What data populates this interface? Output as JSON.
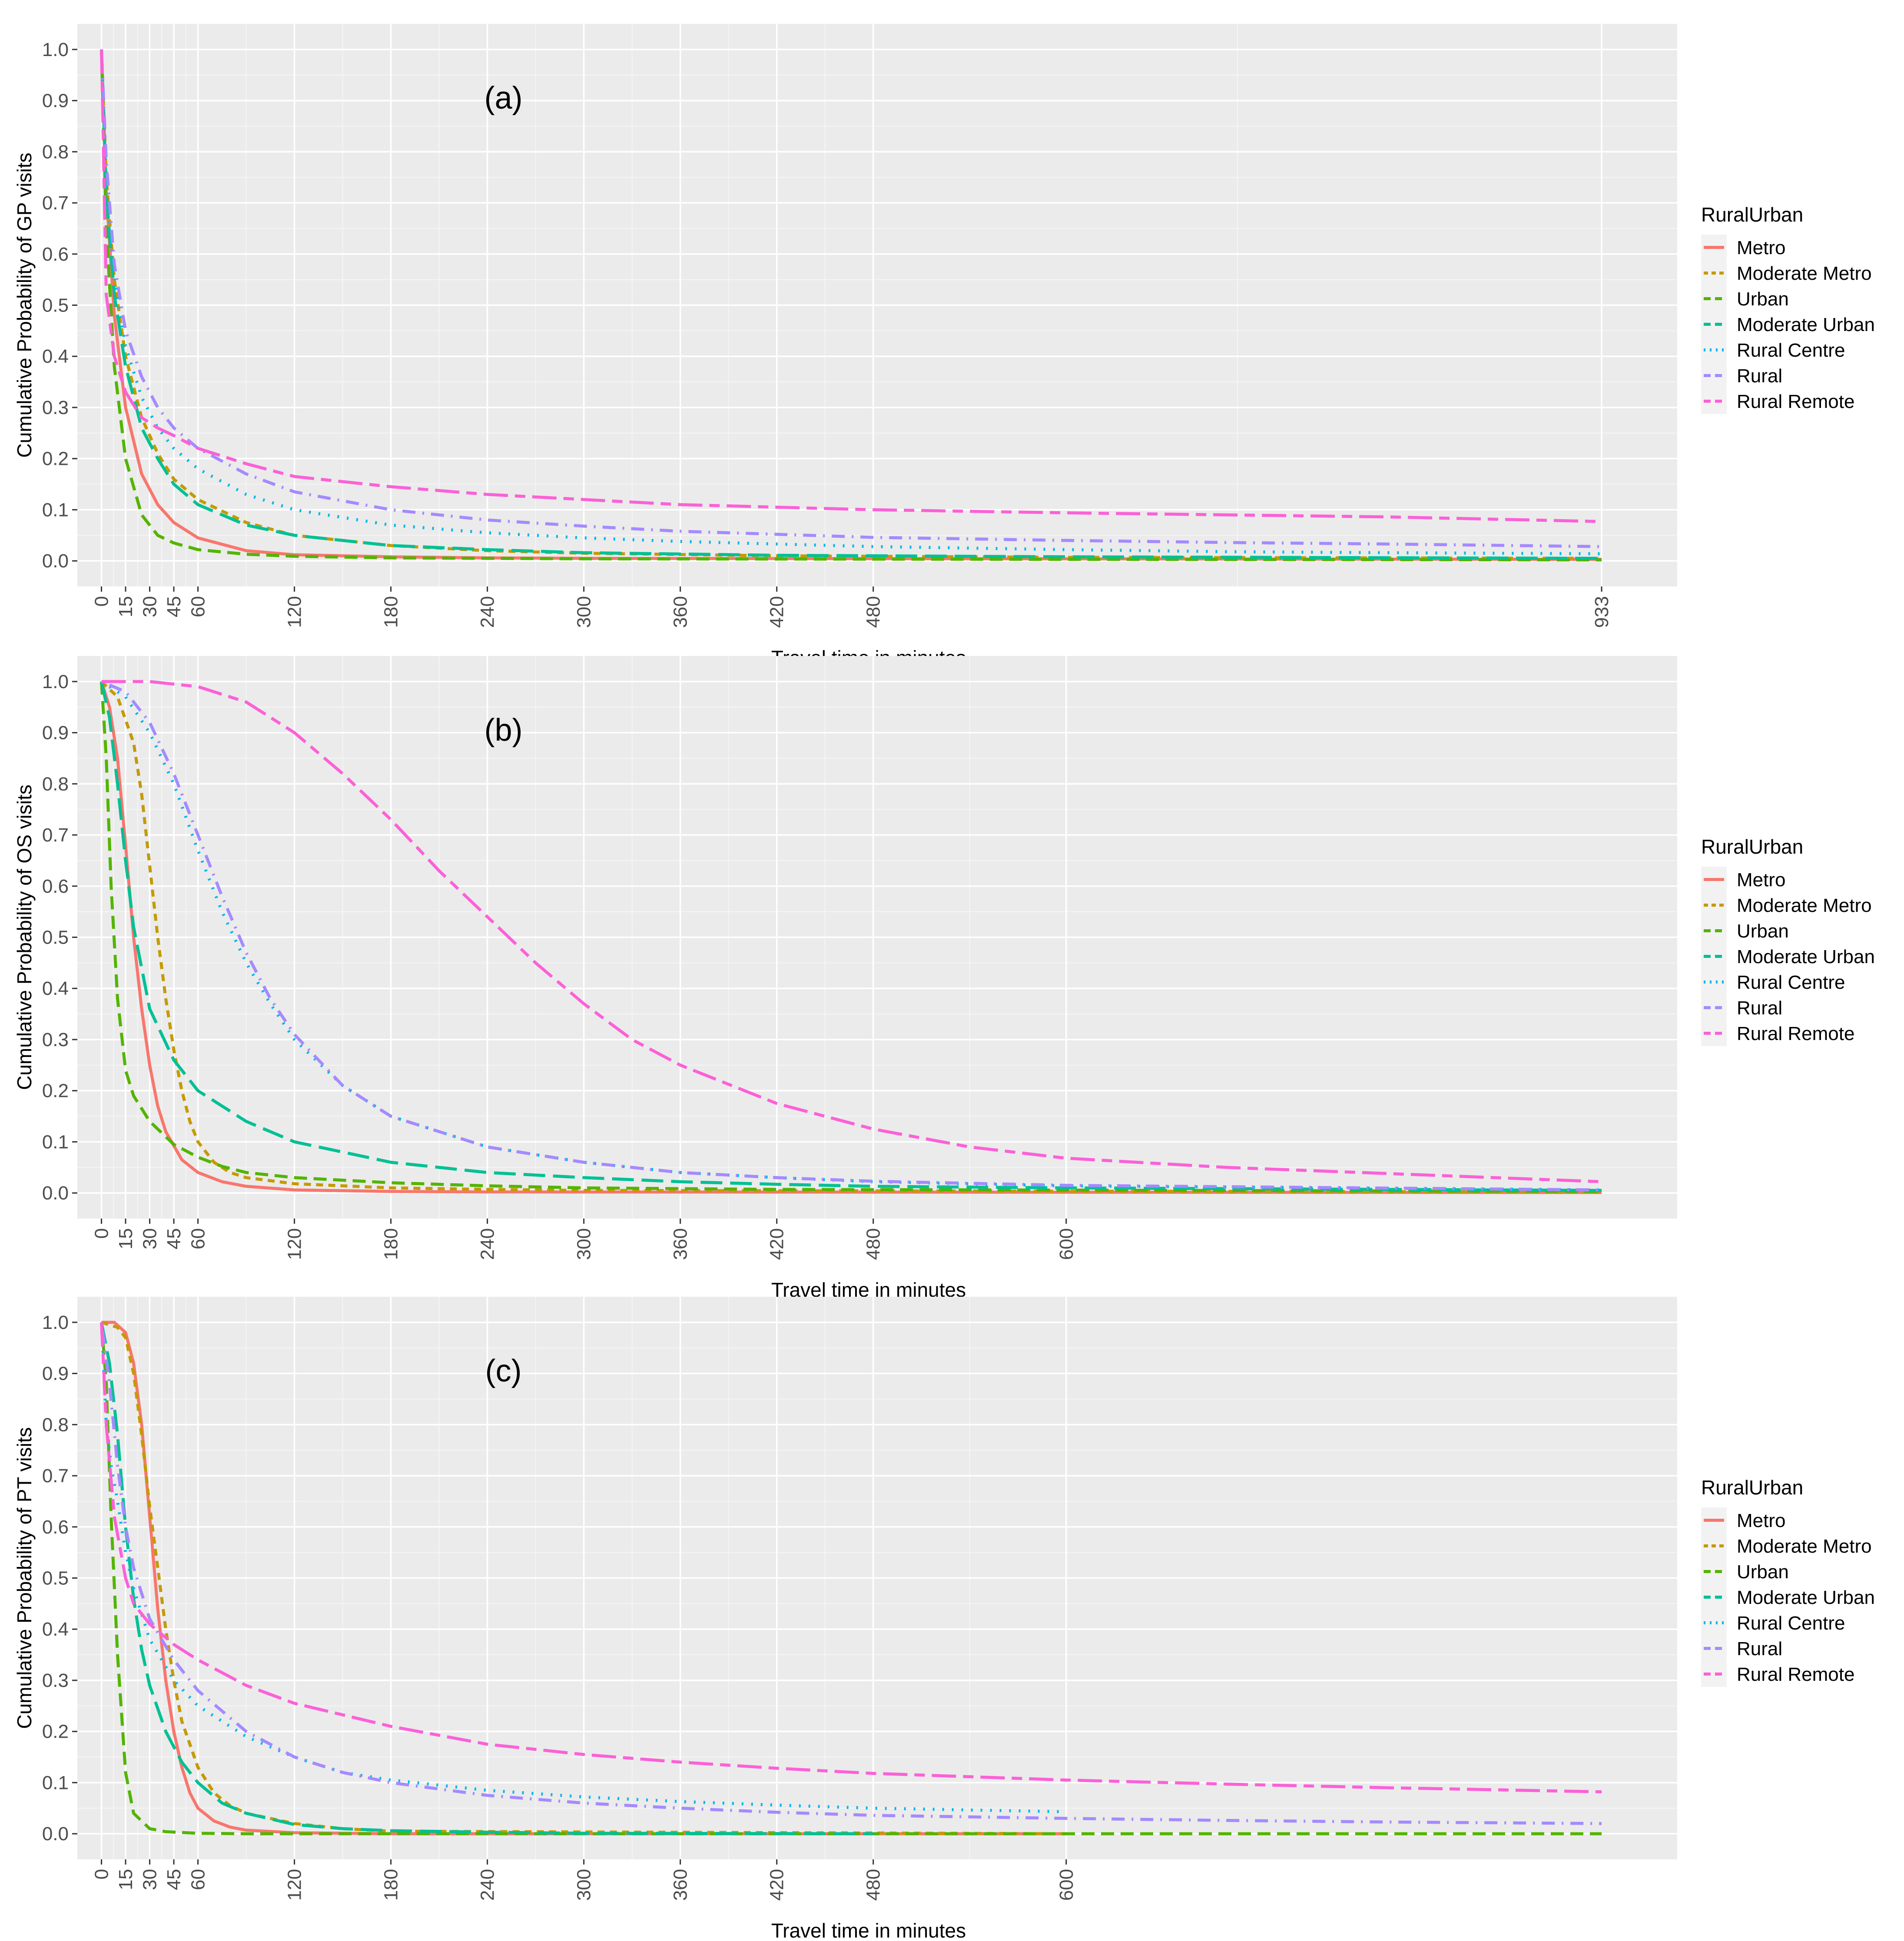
{
  "chart_data": [
    {
      "type": "line",
      "panel_label": "(a)",
      "xlabel": "Travel time in minutes",
      "ylabel": "Cumulative Probability of GP visits",
      "x_ticks": [
        "0",
        "15",
        "30",
        "45",
        "60",
        "120",
        "180",
        "240",
        "300",
        "360",
        "420",
        "480",
        "933"
      ],
      "y_ticks": [
        "0.0",
        "0.1",
        "0.2",
        "0.3",
        "0.4",
        "0.5",
        "0.6",
        "0.7",
        "0.8",
        "0.9",
        "1.0"
      ],
      "xlim": [
        -15,
        980
      ],
      "ylim": [
        -0.05,
        1.05
      ],
      "legend_title": "RuralUrban",
      "series": [
        {
          "name": "Metro",
          "color": "#F8766D",
          "dash": "solid",
          "x": [
            0,
            3,
            8,
            15,
            25,
            35,
            45,
            60,
            90,
            120,
            180,
            240,
            300,
            933
          ],
          "y": [
            1.0,
            0.72,
            0.48,
            0.3,
            0.17,
            0.11,
            0.075,
            0.045,
            0.02,
            0.012,
            0.008,
            0.006,
            0.005,
            0.003
          ]
        },
        {
          "name": "Moderate Metro",
          "color": "#C49A00",
          "dash": "short",
          "x": [
            0,
            3,
            8,
            15,
            25,
            35,
            45,
            60,
            90,
            120,
            180,
            240,
            300,
            420,
            600,
            933
          ],
          "y": [
            1.0,
            0.75,
            0.55,
            0.4,
            0.28,
            0.21,
            0.16,
            0.12,
            0.075,
            0.05,
            0.03,
            0.02,
            0.015,
            0.01,
            0.007,
            0.005
          ]
        },
        {
          "name": "Urban",
          "color": "#53B400",
          "dash": "medium",
          "x": [
            0,
            3,
            8,
            15,
            25,
            35,
            45,
            60,
            90,
            120,
            180,
            300,
            933
          ],
          "y": [
            1.0,
            0.65,
            0.38,
            0.2,
            0.09,
            0.05,
            0.035,
            0.022,
            0.013,
            0.009,
            0.006,
            0.004,
            0.002
          ]
        },
        {
          "name": "Moderate Urban",
          "color": "#00C094",
          "dash": "long",
          "x": [
            0,
            3,
            8,
            15,
            25,
            35,
            45,
            60,
            90,
            120,
            180,
            240,
            300,
            420,
            600,
            933
          ],
          "y": [
            1.0,
            0.72,
            0.52,
            0.38,
            0.26,
            0.2,
            0.15,
            0.11,
            0.07,
            0.05,
            0.03,
            0.022,
            0.016,
            0.011,
            0.008,
            0.005
          ]
        },
        {
          "name": "Rural Centre",
          "color": "#00B6EB",
          "dash": "dotted",
          "x": [
            0,
            3,
            8,
            15,
            25,
            35,
            45,
            60,
            90,
            120,
            180,
            240,
            300,
            360,
            420,
            480,
            600,
            700,
            800,
            933
          ],
          "y": [
            1.0,
            0.75,
            0.55,
            0.42,
            0.32,
            0.26,
            0.22,
            0.18,
            0.13,
            0.1,
            0.07,
            0.055,
            0.045,
            0.038,
            0.033,
            0.028,
            0.022,
            0.018,
            0.016,
            0.014
          ]
        },
        {
          "name": "Rural",
          "color": "#A58AFF",
          "dash": "dotdash",
          "x": [
            0,
            3,
            8,
            15,
            25,
            35,
            45,
            60,
            90,
            120,
            180,
            240,
            300,
            360,
            420,
            480,
            600,
            700,
            800,
            933
          ],
          "y": [
            1.0,
            0.78,
            0.58,
            0.45,
            0.36,
            0.3,
            0.26,
            0.22,
            0.17,
            0.135,
            0.1,
            0.08,
            0.068,
            0.058,
            0.052,
            0.046,
            0.04,
            0.036,
            0.033,
            0.028
          ]
        },
        {
          "name": "Rural Remote",
          "color": "#FB61D7",
          "dash": "twodash",
          "x": [
            0,
            3,
            8,
            15,
            25,
            35,
            45,
            60,
            90,
            120,
            180,
            240,
            300,
            360,
            420,
            480,
            600,
            700,
            800,
            933
          ],
          "y": [
            1.0,
            0.52,
            0.4,
            0.33,
            0.28,
            0.26,
            0.245,
            0.22,
            0.19,
            0.165,
            0.145,
            0.13,
            0.12,
            0.11,
            0.105,
            0.1,
            0.094,
            0.09,
            0.086,
            0.077
          ]
        }
      ]
    },
    {
      "type": "line",
      "panel_label": "(b)",
      "xlabel": "Travel time in minutes",
      "ylabel": "Cumulative Probability of OS visits",
      "x_ticks": [
        "0",
        "15",
        "30",
        "45",
        "60",
        "120",
        "180",
        "240",
        "300",
        "360",
        "420",
        "480",
        "600"
      ],
      "y_ticks": [
        "0.0",
        "0.1",
        "0.2",
        "0.3",
        "0.4",
        "0.5",
        "0.6",
        "0.7",
        "0.8",
        "0.9",
        "1.0"
      ],
      "xlim": [
        -15,
        980
      ],
      "ylim": [
        -0.05,
        1.05
      ],
      "legend_title": "RuralUrban",
      "series": [
        {
          "name": "Metro",
          "color": "#F8766D",
          "dash": "solid",
          "x": [
            0,
            5,
            10,
            15,
            20,
            25,
            30,
            35,
            40,
            50,
            60,
            75,
            90,
            120,
            180,
            240,
            933
          ],
          "y": [
            1.0,
            0.95,
            0.85,
            0.68,
            0.5,
            0.36,
            0.25,
            0.17,
            0.12,
            0.065,
            0.04,
            0.022,
            0.013,
            0.006,
            0.003,
            0.002,
            0.001
          ]
        },
        {
          "name": "Moderate Metro",
          "color": "#C49A00",
          "dash": "short",
          "x": [
            0,
            10,
            20,
            25,
            30,
            35,
            40,
            45,
            50,
            55,
            60,
            70,
            80,
            90,
            120,
            180,
            240,
            300,
            933
          ],
          "y": [
            1.0,
            0.97,
            0.88,
            0.78,
            0.64,
            0.5,
            0.38,
            0.28,
            0.2,
            0.14,
            0.1,
            0.06,
            0.04,
            0.03,
            0.018,
            0.01,
            0.007,
            0.005,
            0.002
          ]
        },
        {
          "name": "Urban",
          "color": "#53B400",
          "dash": "medium",
          "x": [
            0,
            3,
            6,
            10,
            15,
            20,
            30,
            45,
            60,
            75,
            90,
            120,
            180,
            240,
            300,
            420,
            933
          ],
          "y": [
            1.0,
            0.85,
            0.6,
            0.38,
            0.24,
            0.19,
            0.14,
            0.095,
            0.07,
            0.052,
            0.04,
            0.03,
            0.02,
            0.014,
            0.01,
            0.007,
            0.003
          ]
        },
        {
          "name": "Moderate Urban",
          "color": "#00C094",
          "dash": "long",
          "x": [
            0,
            5,
            10,
            15,
            20,
            30,
            45,
            60,
            90,
            120,
            180,
            240,
            300,
            360,
            420,
            480,
            600,
            933
          ],
          "y": [
            1.0,
            0.93,
            0.8,
            0.65,
            0.52,
            0.36,
            0.26,
            0.2,
            0.14,
            0.1,
            0.06,
            0.04,
            0.03,
            0.022,
            0.017,
            0.013,
            0.01,
            0.005
          ]
        },
        {
          "name": "Rural Centre",
          "color": "#00B6EB",
          "dash": "dotted",
          "x": [
            0,
            15,
            30,
            45,
            60,
            75,
            90,
            105,
            120,
            150,
            180,
            240,
            300,
            360,
            420,
            480,
            600,
            933
          ],
          "y": [
            1.0,
            0.97,
            0.9,
            0.8,
            0.67,
            0.55,
            0.45,
            0.37,
            0.3,
            0.21,
            0.15,
            0.09,
            0.06,
            0.04,
            0.03,
            0.022,
            0.014,
            0.006
          ]
        },
        {
          "name": "Rural",
          "color": "#A58AFF",
          "dash": "dotdash",
          "x": [
            0,
            15,
            30,
            45,
            60,
            75,
            90,
            105,
            120,
            150,
            180,
            240,
            300,
            360,
            420,
            480,
            600,
            933
          ],
          "y": [
            1.0,
            0.98,
            0.92,
            0.82,
            0.7,
            0.58,
            0.47,
            0.38,
            0.31,
            0.21,
            0.15,
            0.09,
            0.06,
            0.04,
            0.03,
            0.023,
            0.015,
            0.006
          ]
        },
        {
          "name": "Rural Remote",
          "color": "#FB61D7",
          "dash": "twodash",
          "x": [
            0,
            30,
            60,
            90,
            120,
            150,
            180,
            210,
            240,
            270,
            300,
            330,
            360,
            420,
            480,
            540,
            600,
            700,
            800,
            933
          ],
          "y": [
            1.0,
            1.0,
            0.99,
            0.96,
            0.9,
            0.82,
            0.73,
            0.63,
            0.54,
            0.45,
            0.37,
            0.3,
            0.25,
            0.175,
            0.125,
            0.09,
            0.068,
            0.05,
            0.038,
            0.022
          ]
        }
      ]
    },
    {
      "type": "line",
      "panel_label": "(c)",
      "xlabel": "Travel time in minutes",
      "ylabel": "Cumulative Probability of PT visits",
      "x_ticks": [
        "0",
        "15",
        "30",
        "45",
        "60",
        "120",
        "180",
        "240",
        "300",
        "360",
        "420",
        "480",
        "600"
      ],
      "y_ticks": [
        "0.0",
        "0.1",
        "0.2",
        "0.3",
        "0.4",
        "0.5",
        "0.6",
        "0.7",
        "0.8",
        "0.9",
        "1.0"
      ],
      "xlim": [
        -15,
        980
      ],
      "ylim": [
        -0.05,
        1.05
      ],
      "legend_title": "RuralUrban",
      "series": [
        {
          "name": "Metro",
          "color": "#F8766D",
          "dash": "solid",
          "x": [
            0,
            8,
            15,
            20,
            25,
            30,
            35,
            40,
            45,
            50,
            55,
            60,
            70,
            80,
            90,
            120,
            180,
            600
          ],
          "y": [
            1.0,
            1.0,
            0.98,
            0.92,
            0.8,
            0.62,
            0.44,
            0.3,
            0.2,
            0.13,
            0.08,
            0.05,
            0.025,
            0.013,
            0.007,
            0.002,
            0.0,
            0.0
          ]
        },
        {
          "name": "Moderate Metro",
          "color": "#C49A00",
          "dash": "short",
          "x": [
            0,
            10,
            15,
            20,
            25,
            30,
            35,
            40,
            45,
            50,
            60,
            70,
            80,
            90,
            120,
            150,
            180,
            600
          ],
          "y": [
            1.0,
            0.99,
            0.97,
            0.9,
            0.78,
            0.64,
            0.52,
            0.4,
            0.3,
            0.22,
            0.13,
            0.08,
            0.055,
            0.04,
            0.02,
            0.01,
            0.005,
            0.0
          ]
        },
        {
          "name": "Urban",
          "color": "#53B400",
          "dash": "medium",
          "x": [
            0,
            3,
            6,
            10,
            15,
            20,
            30,
            40,
            60,
            90,
            933
          ],
          "y": [
            1.0,
            0.88,
            0.62,
            0.35,
            0.12,
            0.04,
            0.01,
            0.004,
            0.001,
            0.0,
            0.0
          ]
        },
        {
          "name": "Moderate Urban",
          "color": "#00C094",
          "dash": "long",
          "x": [
            0,
            5,
            10,
            15,
            20,
            25,
            30,
            40,
            50,
            60,
            75,
            90,
            120,
            150,
            180,
            240,
            300,
            480
          ],
          "y": [
            1.0,
            0.92,
            0.78,
            0.6,
            0.46,
            0.36,
            0.29,
            0.2,
            0.14,
            0.1,
            0.06,
            0.04,
            0.018,
            0.01,
            0.006,
            0.003,
            0.001,
            0.0
          ]
        },
        {
          "name": "Rural Centre",
          "color": "#00B6EB",
          "dash": "dotted",
          "x": [
            0,
            3,
            6,
            10,
            15,
            20,
            30,
            45,
            60,
            90,
            120,
            150,
            180,
            240,
            300,
            360,
            420,
            480,
            600
          ],
          "y": [
            1.0,
            0.8,
            0.72,
            0.65,
            0.55,
            0.48,
            0.38,
            0.3,
            0.25,
            0.19,
            0.15,
            0.12,
            0.105,
            0.085,
            0.072,
            0.063,
            0.056,
            0.05,
            0.043
          ]
        },
        {
          "name": "Rural",
          "color": "#A58AFF",
          "dash": "dotdash",
          "x": [
            0,
            5,
            10,
            15,
            20,
            30,
            45,
            60,
            90,
            120,
            150,
            180,
            240,
            300,
            360,
            420,
            480,
            600,
            700,
            800,
            933
          ],
          "y": [
            1.0,
            0.88,
            0.72,
            0.6,
            0.52,
            0.42,
            0.34,
            0.28,
            0.2,
            0.15,
            0.12,
            0.1,
            0.075,
            0.06,
            0.05,
            0.042,
            0.036,
            0.03,
            0.026,
            0.023,
            0.02
          ]
        },
        {
          "name": "Rural Remote",
          "color": "#FB61D7",
          "dash": "twodash",
          "x": [
            0,
            3,
            8,
            15,
            20,
            30,
            45,
            60,
            90,
            120,
            180,
            240,
            300,
            360,
            420,
            480,
            600,
            700,
            800,
            933
          ],
          "y": [
            1.0,
            0.8,
            0.62,
            0.5,
            0.45,
            0.41,
            0.37,
            0.34,
            0.29,
            0.255,
            0.21,
            0.175,
            0.155,
            0.14,
            0.128,
            0.118,
            0.105,
            0.097,
            0.09,
            0.082
          ]
        }
      ]
    }
  ]
}
